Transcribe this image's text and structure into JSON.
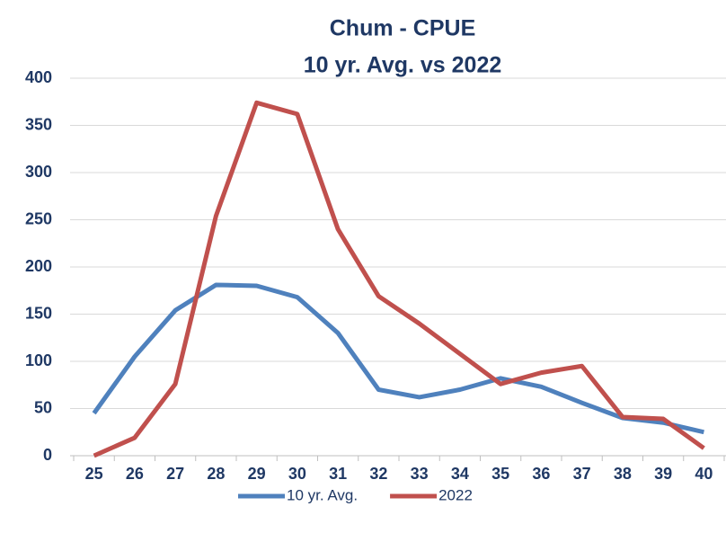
{
  "chart_data": {
    "type": "line",
    "title": "Chum - CPUE",
    "subtitle": "10 yr. Avg. vs 2022",
    "categories": [
      "25",
      "26",
      "27",
      "28",
      "29",
      "30",
      "31",
      "32",
      "33",
      "34",
      "35",
      "36",
      "37",
      "38",
      "39",
      "40"
    ],
    "series": [
      {
        "name": "10 yr. Avg.",
        "color": "#4f81bd",
        "values": [
          45,
          105,
          154,
          181,
          180,
          168,
          130,
          70,
          62,
          70,
          82,
          73,
          56,
          40,
          35,
          25
        ]
      },
      {
        "name": "2022",
        "color": "#c0504d",
        "values": [
          0,
          19,
          76,
          254,
          374,
          362,
          240,
          169,
          140,
          108,
          76,
          88,
          95,
          41,
          39,
          8
        ]
      }
    ],
    "ylim": [
      0,
      400
    ],
    "yticks": [
      0,
      50,
      100,
      150,
      200,
      250,
      300,
      350,
      400
    ],
    "grid": true,
    "legend": "bottom"
  }
}
